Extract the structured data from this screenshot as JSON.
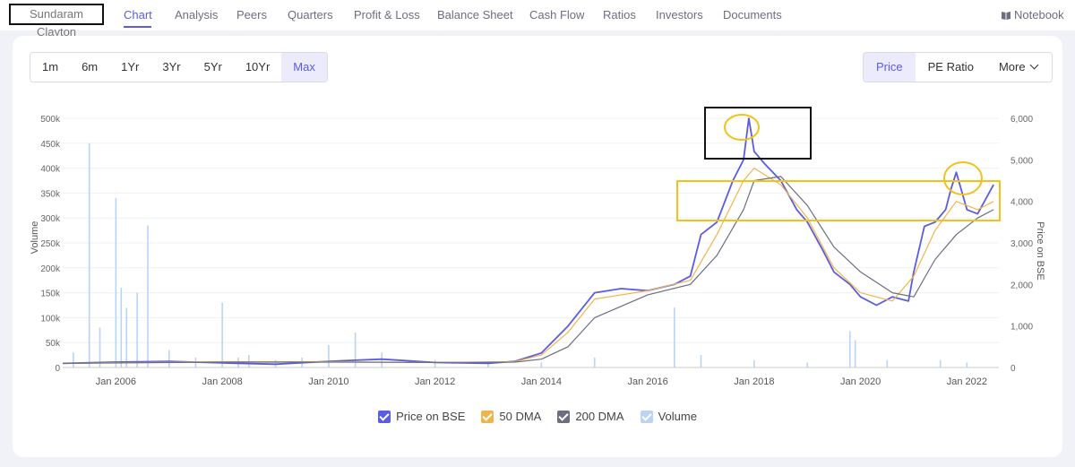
{
  "nav": {
    "company": "Sundaram Clayton",
    "tabs": [
      "Chart",
      "Analysis",
      "Peers",
      "Quarters",
      "Profit & Loss",
      "Balance Sheet",
      "Cash Flow",
      "Ratios",
      "Investors",
      "Documents"
    ],
    "active_tab": "Chart",
    "notebook": "Notebook"
  },
  "periods": {
    "items": [
      "1m",
      "6m",
      "1Yr",
      "3Yr",
      "5Yr",
      "10Yr",
      "Max"
    ],
    "selected": "Max"
  },
  "metrics": {
    "price": "Price",
    "pe": "PE Ratio",
    "more": "More"
  },
  "legend": [
    {
      "label": "Price on BSE",
      "color": "#5b5ce2"
    },
    {
      "label": "50 DMA",
      "color": "#f0b54a"
    },
    {
      "label": "200 DMA",
      "color": "#6b6f80"
    },
    {
      "label": "Volume",
      "color": "#b9d4f6"
    }
  ],
  "chart_data": {
    "type": "line",
    "xlabel": "",
    "ylabel_left": "Volume",
    "ylabel_right": "Price on BSE",
    "x_ticks": [
      "Jan 2006",
      "Jan 2008",
      "Jan 2010",
      "Jan 2012",
      "Jan 2014",
      "Jan 2016",
      "Jan 2018",
      "Jan 2020",
      "Jan 2022"
    ],
    "yleft_ticks": [
      "0",
      "50k",
      "100k",
      "150k",
      "200k",
      "250k",
      "300k",
      "350k",
      "400k",
      "450k",
      "500k"
    ],
    "yright_ticks": [
      "0",
      "1,000",
      "2,000",
      "3,000",
      "4,000",
      "5,000",
      "6,000"
    ],
    "ylim_left": [
      0,
      500000
    ],
    "ylim_right": [
      0,
      6000
    ],
    "xlim": [
      2005.0,
      2022.6
    ],
    "series": [
      {
        "name": "Price on BSE",
        "x": [
          2005.0,
          2006.0,
          2007.0,
          2008.0,
          2009.0,
          2010.0,
          2011.0,
          2012.0,
          2013.0,
          2013.5,
          2014.0,
          2014.5,
          2015.0,
          2015.5,
          2016.0,
          2016.5,
          2016.8,
          2017.0,
          2017.3,
          2017.6,
          2017.8,
          2017.9,
          2018.0,
          2018.2,
          2018.5,
          2018.8,
          2019.0,
          2019.3,
          2019.5,
          2019.8,
          2020.0,
          2020.3,
          2020.6,
          2020.9,
          2021.0,
          2021.2,
          2021.4,
          2021.6,
          2021.7,
          2021.8,
          2022.0,
          2022.2,
          2022.5
        ],
        "values": [
          100,
          130,
          150,
          110,
          80,
          150,
          200,
          120,
          100,
          150,
          350,
          1000,
          1800,
          1900,
          1850,
          2000,
          2200,
          3200,
          3500,
          4500,
          5000,
          6000,
          5200,
          4900,
          4500,
          3800,
          3500,
          2800,
          2300,
          2000,
          1700,
          1500,
          1700,
          1600,
          2300,
          3400,
          3500,
          3800,
          4300,
          4700,
          3800,
          3700,
          4400
        ]
      },
      {
        "name": "50 DMA",
        "x": [
          2005.0,
          2008.0,
          2010.0,
          2012.0,
          2013.5,
          2014.0,
          2014.5,
          2015.0,
          2016.0,
          2016.8,
          2017.3,
          2017.8,
          2018.0,
          2018.5,
          2019.0,
          2019.5,
          2020.0,
          2020.6,
          2021.0,
          2021.4,
          2021.8,
          2022.2,
          2022.5
        ],
        "values": [
          100,
          140,
          140,
          120,
          140,
          300,
          850,
          1650,
          1850,
          2100,
          3200,
          4500,
          4800,
          4400,
          3600,
          2400,
          1800,
          1600,
          2200,
          3300,
          4000,
          3800,
          4000
        ]
      },
      {
        "name": "200 DMA",
        "x": [
          2005.0,
          2008.0,
          2010.0,
          2012.0,
          2013.5,
          2014.0,
          2014.5,
          2015.0,
          2016.0,
          2016.8,
          2017.3,
          2017.8,
          2018.0,
          2018.5,
          2019.0,
          2019.5,
          2020.0,
          2020.6,
          2021.0,
          2021.4,
          2021.8,
          2022.2,
          2022.5
        ],
        "values": [
          100,
          130,
          130,
          120,
          130,
          200,
          500,
          1200,
          1750,
          2000,
          2700,
          3800,
          4500,
          4600,
          3900,
          2900,
          2300,
          1800,
          1700,
          2600,
          3200,
          3600,
          3800
        ]
      },
      {
        "name": "Volume",
        "x": [
          2005.2,
          2005.5,
          2005.7,
          2006.0,
          2006.1,
          2006.2,
          2006.4,
          2006.6,
          2007.0,
          2007.5,
          2008.0,
          2008.3,
          2008.5,
          2009.0,
          2009.5,
          2010.0,
          2010.5,
          2011.0,
          2012.0,
          2013.0,
          2014.0,
          2015.0,
          2016.5,
          2017.0,
          2018.0,
          2019.0,
          2019.8,
          2019.9,
          2020.5,
          2021.5,
          2022.0
        ],
        "values": [
          30000,
          450000,
          80000,
          340000,
          160000,
          120000,
          150000,
          285000,
          35000,
          20000,
          130000,
          20000,
          25000,
          15000,
          20000,
          45000,
          70000,
          30000,
          15000,
          10000,
          10000,
          20000,
          120000,
          25000,
          15000,
          10000,
          73000,
          55000,
          15000,
          15000,
          10000
        ]
      }
    ]
  }
}
